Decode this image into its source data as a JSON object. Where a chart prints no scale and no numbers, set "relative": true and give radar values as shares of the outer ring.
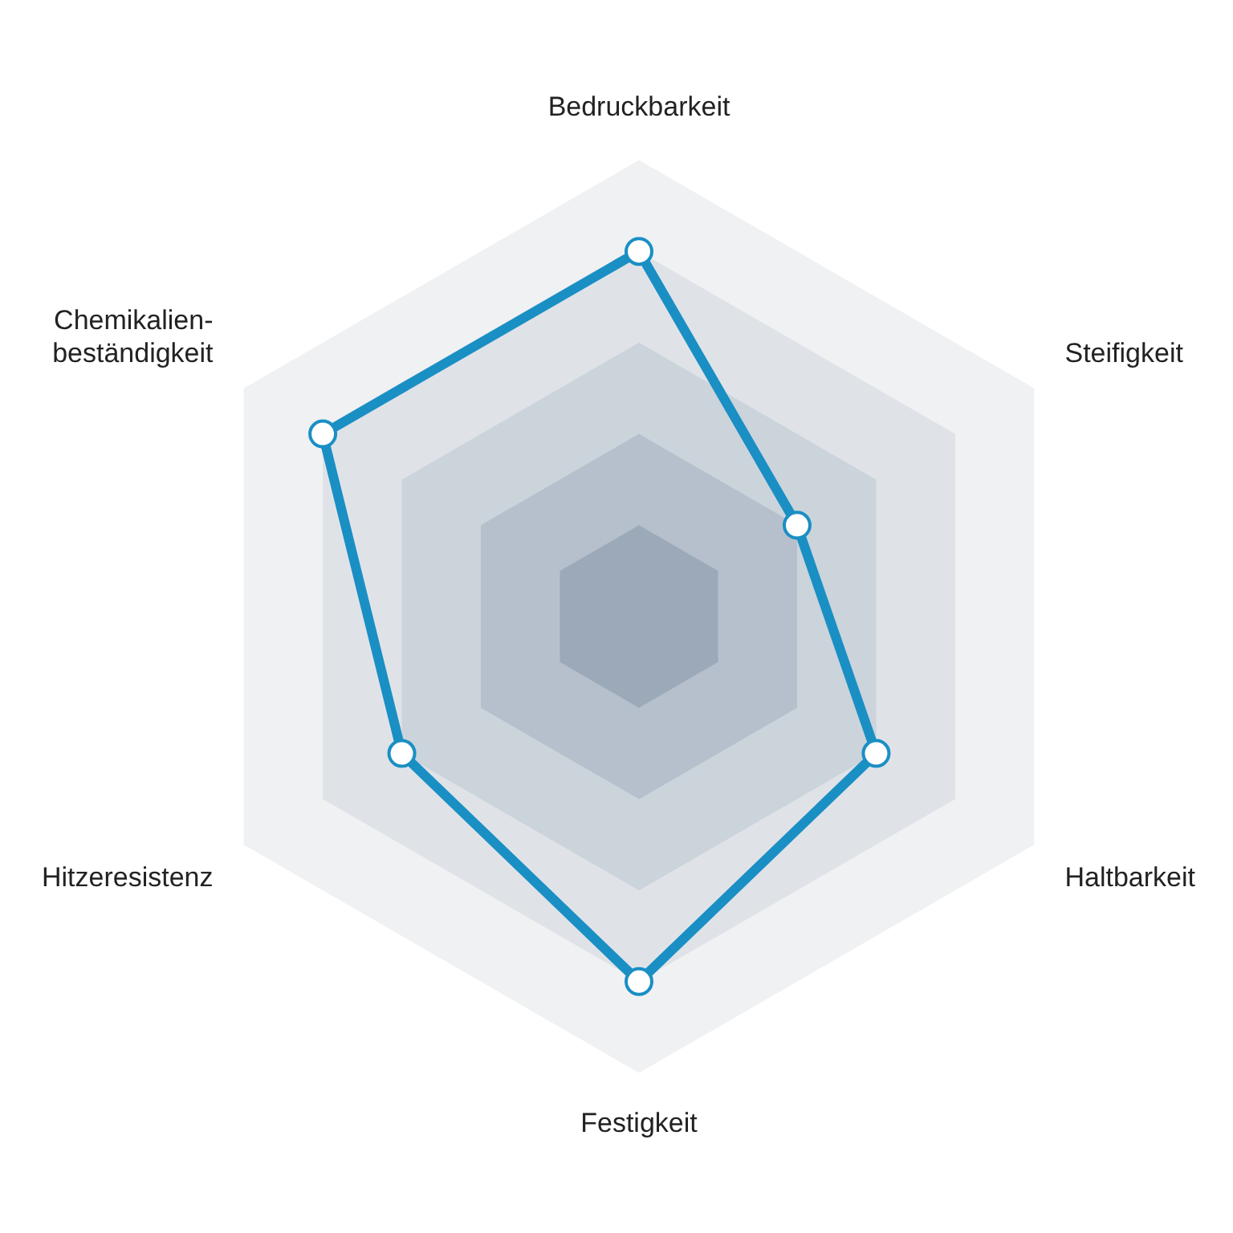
{
  "chart_data": {
    "type": "radar",
    "relative": true,
    "legend": false,
    "marker": "circle",
    "categories": [
      "Bedruckbarkeit",
      "Steifigkeit",
      "Haltbarkeit",
      "Festigkeit",
      "Hitzeresistenz",
      "Chemikalien-\nbeständigkeit"
    ],
    "series": [
      {
        "color": "#1a8fc4",
        "values": [
          0.8,
          0.4,
          0.6,
          0.8,
          0.6,
          0.8
        ]
      }
    ]
  }
}
